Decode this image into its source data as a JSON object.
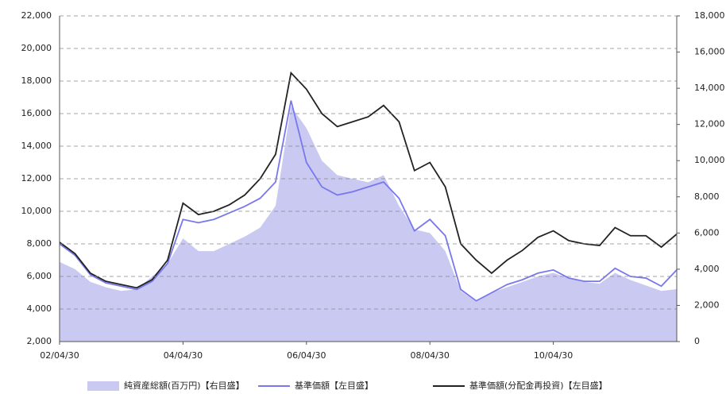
{
  "chart_data": {
    "type": "line",
    "categories": [
      "02/04/30",
      null,
      null,
      null,
      null,
      null,
      null,
      null,
      "04/04/30",
      null,
      null,
      null,
      null,
      null,
      null,
      null,
      "06/04/30",
      null,
      null,
      null,
      null,
      null,
      null,
      null,
      "08/04/30",
      null,
      null,
      null,
      null,
      null,
      null,
      null,
      "10/04/30",
      null,
      null,
      null,
      null,
      null,
      null,
      null,
      null
    ],
    "series": [
      {
        "name": "純資産総額(百万円)【右目盛】",
        "kind": "area",
        "axis": "y2",
        "color": "#c9c9f2",
        "values": [
          4400,
          4000,
          3300,
          3000,
          2800,
          2900,
          3600,
          4300,
          5700,
          5000,
          5000,
          5400,
          5800,
          6300,
          7500,
          13000,
          11800,
          10000,
          9200,
          9000,
          8800,
          9200,
          7500,
          6200,
          6000,
          5000,
          2800,
          2200,
          2700,
          3000,
          3300,
          3600,
          3800,
          3500,
          3300,
          3200,
          3800,
          3400,
          3100,
          2800,
          2900
        ]
      },
      {
        "name": "基準価額【左目盛】",
        "kind": "line",
        "color": "#7878ee",
        "values": [
          8000,
          7300,
          6100,
          5600,
          5400,
          5200,
          5700,
          6800,
          9500,
          9300,
          9500,
          9900,
          10300,
          10800,
          11800,
          16800,
          13000,
          11500,
          11000,
          11200,
          11500,
          11800,
          10800,
          8800,
          9500,
          8500,
          5200,
          4500,
          5000,
          5500,
          5800,
          6200,
          6400,
          5900,
          5700,
          5700,
          6500,
          6000,
          5900,
          5400,
          6400
        ]
      },
      {
        "name": "基準価額(分配金再投資)【左目盛】",
        "kind": "line",
        "color": "#222222",
        "values": [
          8100,
          7400,
          6200,
          5700,
          5500,
          5300,
          5800,
          7000,
          10500,
          9800,
          10000,
          10400,
          11000,
          12000,
          13500,
          18500,
          17500,
          16000,
          15200,
          15500,
          15800,
          16500,
          15500,
          12500,
          13000,
          11500,
          8000,
          7000,
          6200,
          7000,
          7600,
          8400,
          8800,
          8200,
          8000,
          7900,
          9000,
          8500,
          8500,
          7800,
          8600
        ]
      }
    ],
    "ylim": [
      2000,
      22000
    ],
    "yticks": [
      {
        "value": 2000,
        "label": "2,000"
      },
      {
        "value": 4000,
        "label": "4,000"
      },
      {
        "value": 6000,
        "label": "6,000"
      },
      {
        "value": 8000,
        "label": "8,000"
      },
      {
        "value": 10000,
        "label": "10,000"
      },
      {
        "value": 12000,
        "label": "12,000"
      },
      {
        "value": 14000,
        "label": "14,000"
      },
      {
        "value": 16000,
        "label": "16,000"
      },
      {
        "value": 18000,
        "label": "18,000"
      },
      {
        "value": 20000,
        "label": "20,000"
      },
      {
        "value": 22000,
        "label": "22,000"
      }
    ],
    "y2lim": [
      0,
      18000
    ],
    "y2ticks": [
      0,
      {
        "value": 2000,
        "label": "2,000"
      },
      {
        "value": 4000,
        "label": "4,000"
      },
      {
        "value": 6000,
        "label": "6,000"
      },
      {
        "value": 8000,
        "label": "8,000"
      },
      {
        "value": 10000,
        "label": "10,000"
      },
      {
        "value": 12000,
        "label": "12,000"
      },
      {
        "value": 14000,
        "label": "14,000"
      },
      {
        "value": 16000,
        "label": "16,000"
      },
      {
        "value": 18000,
        "label": "18,000"
      }
    ],
    "grid": true,
    "legend": "bottom"
  }
}
